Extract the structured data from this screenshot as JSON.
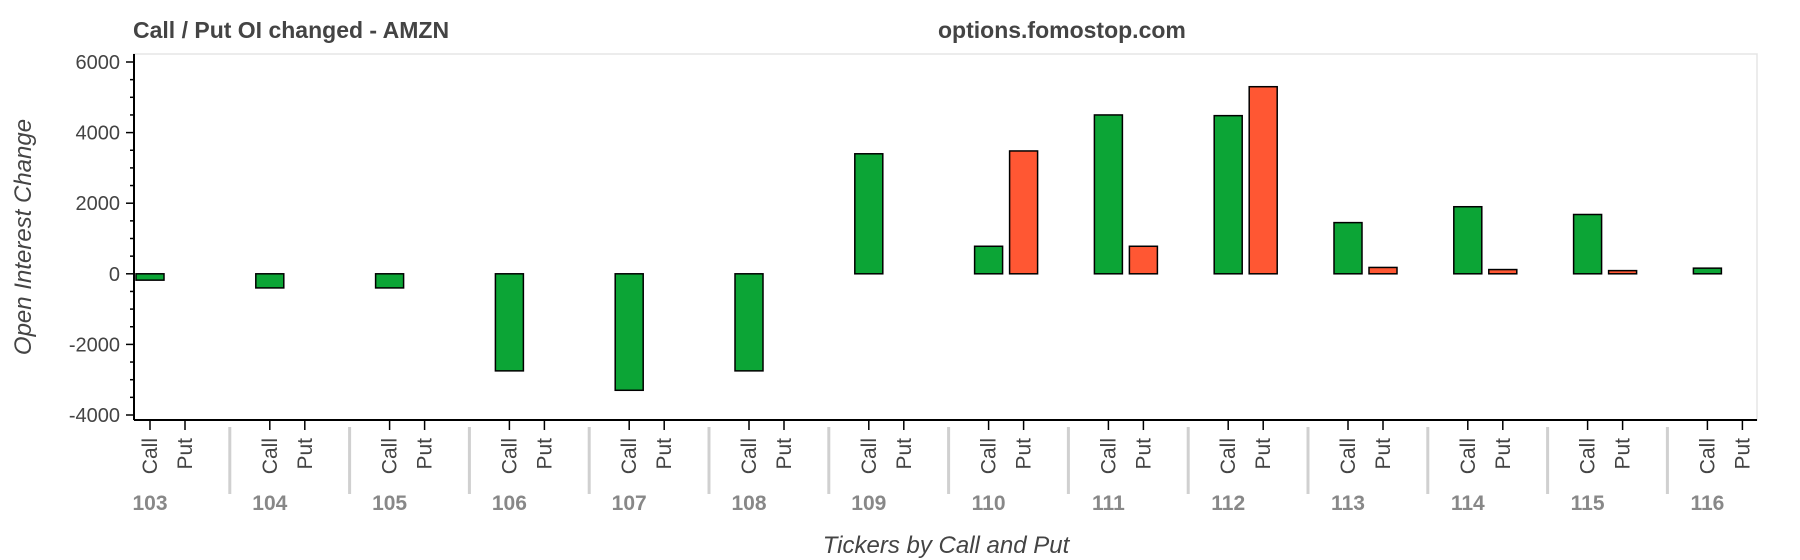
{
  "chart_data": {
    "type": "bar",
    "title": "Call / Put OI changed - AMZN",
    "watermark": "options.fomostop.com",
    "xlabel": "Tickers by Call and Put",
    "ylabel": "Open Interest Change",
    "ylim": [
      -4000,
      6000
    ],
    "yticks": [
      "6000",
      "4000",
      "2000",
      "0",
      "-2000",
      "-4000"
    ],
    "subcategories": [
      "Call",
      "Put"
    ],
    "groups": [
      "103",
      "104",
      "105",
      "106",
      "107",
      "108",
      "109",
      "110",
      "111",
      "112",
      "113",
      "114",
      "115",
      "116"
    ],
    "series": [
      {
        "key": "Call",
        "values": [
          -180,
          -400,
          -400,
          -2750,
          -3300,
          -2750,
          3400,
          780,
          4500,
          4480,
          1450,
          1900,
          1680,
          160
        ]
      },
      {
        "key": "Put",
        "values": [
          0,
          0,
          0,
          0,
          0,
          0,
          0,
          3480,
          780,
          5300,
          180,
          120,
          90,
          0
        ]
      }
    ],
    "colors": {
      "Call": "#0ca536",
      "Put": "#ff5733",
      "separator": "#d0d0d0",
      "plot_border": "#e5e5e5"
    },
    "grid": false,
    "legend": "none"
  }
}
